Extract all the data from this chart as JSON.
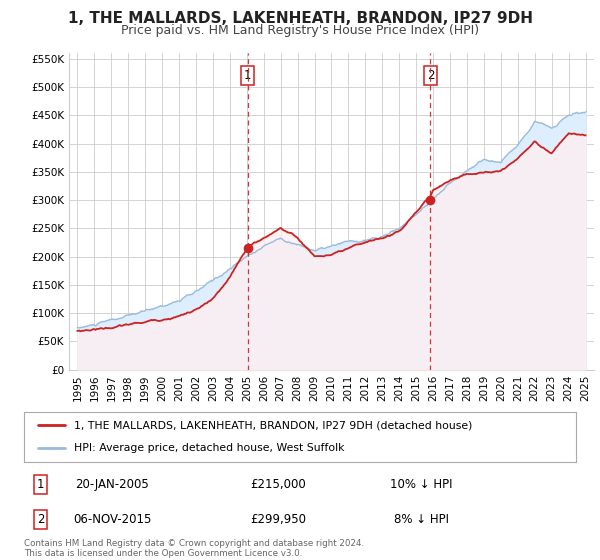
{
  "title": "1, THE MALLARDS, LAKENHEATH, BRANDON, IP27 9DH",
  "subtitle": "Price paid vs. HM Land Registry's House Price Index (HPI)",
  "title_fontsize": 11,
  "subtitle_fontsize": 9,
  "background_color": "#ffffff",
  "plot_bg_color": "#ffffff",
  "grid_color": "#cccccc",
  "hpi_line_color": "#99bbdd",
  "hpi_fill_color": "#ddeeff",
  "price_line_color": "#cc2222",
  "marker_color": "#cc2222",
  "vline_color": "#cc2222",
  "legend_label_price": "1, THE MALLARDS, LAKENHEATH, BRANDON, IP27 9DH (detached house)",
  "legend_label_hpi": "HPI: Average price, detached house, West Suffolk",
  "footer": "Contains HM Land Registry data © Crown copyright and database right 2024.\nThis data is licensed under the Open Government Licence v3.0.",
  "event1_date_num": 2005.054,
  "event1_price": 215000,
  "event1_label": "20-JAN-2005",
  "event1_price_label": "£215,000",
  "event1_pct": "10% ↓ HPI",
  "event2_date_num": 2015.843,
  "event2_price": 299950,
  "event2_label": "06-NOV-2015",
  "event2_price_label": "£299,950",
  "event2_pct": "8% ↓ HPI",
  "ylim": [
    0,
    560000
  ],
  "xlim_start": 1994.5,
  "xlim_end": 2025.5,
  "yticks": [
    0,
    50000,
    100000,
    150000,
    200000,
    250000,
    300000,
    350000,
    400000,
    450000,
    500000,
    550000
  ],
  "ytick_labels": [
    "£0",
    "£50K",
    "£100K",
    "£150K",
    "£200K",
    "£250K",
    "£300K",
    "£350K",
    "£400K",
    "£450K",
    "£500K",
    "£550K"
  ],
  "xticks": [
    1995,
    1996,
    1997,
    1998,
    1999,
    2000,
    2001,
    2002,
    2003,
    2004,
    2005,
    2006,
    2007,
    2008,
    2009,
    2010,
    2011,
    2012,
    2013,
    2014,
    2015,
    2016,
    2017,
    2018,
    2019,
    2020,
    2021,
    2022,
    2023,
    2024,
    2025
  ]
}
